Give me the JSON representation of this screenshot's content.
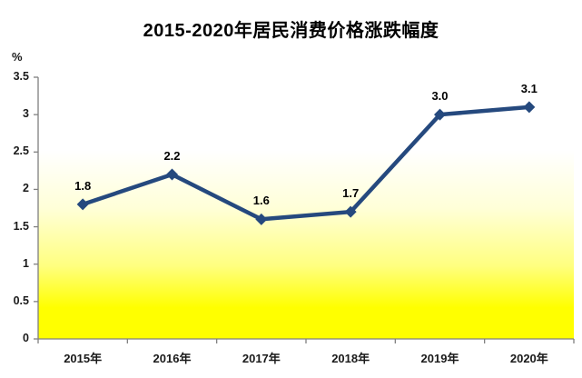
{
  "chart": {
    "title": "2015-2020年居民消费价格涨跌幅度",
    "y_unit_label": "%"
  },
  "chart_data": {
    "type": "line",
    "title": "2015-2020年居民消费价格涨跌幅度",
    "xlabel": "",
    "ylabel": "%",
    "categories": [
      "2015年",
      "2016年",
      "2017年",
      "2018年",
      "2019年",
      "2020年"
    ],
    "values": [
      1.8,
      2.2,
      1.6,
      1.7,
      3.0,
      3.1
    ],
    "data_labels": [
      "1.8",
      "2.2",
      "1.6",
      "1.7",
      "3.0",
      "3.1"
    ],
    "ylim": [
      0,
      3.5
    ],
    "ytick_values": [
      0,
      0.5,
      1,
      1.5,
      2,
      2.5,
      3,
      3.5
    ],
    "ytick_labels": [
      "0",
      "0.5",
      "1",
      "1.5",
      "2",
      "2.5",
      "3",
      "3.5"
    ],
    "grid": false,
    "legend": "none",
    "marker": "diamond",
    "colors": {
      "line": "#25497E",
      "marker": "#25497E",
      "data_label": "#000000",
      "axis": "#808080",
      "tick_label": "#1a1a1a",
      "title": "#000000",
      "plot_gradient_top": "#FFFFFF",
      "plot_gradient_mid1": "#FFFFD8",
      "plot_gradient_mid2": "#FFFF80",
      "plot_gradient_bottom": "#FFFF00",
      "page_background": "#FFFFFF"
    }
  }
}
